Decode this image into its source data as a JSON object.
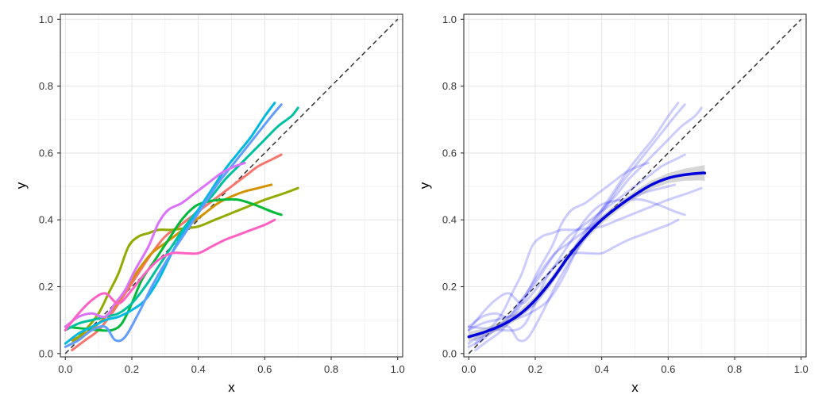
{
  "chart_data": [
    {
      "type": "line",
      "title": "",
      "xlabel": "x",
      "ylabel": "y",
      "xlim": [
        -0.015,
        1.015
      ],
      "ylim": [
        -0.01,
        1.015
      ],
      "xticks": [
        "0.0",
        "0.2",
        "0.4",
        "0.6",
        "0.8",
        "1.0"
      ],
      "yticks": [
        "0.0",
        "0.2",
        "0.4",
        "0.6",
        "0.8",
        "1.0"
      ],
      "grid": true,
      "legend": "none",
      "reference_line": {
        "x": [
          0,
          1
        ],
        "y": [
          0,
          1
        ],
        "style": "dashed",
        "color": "#333333"
      },
      "series": [
        {
          "color": "#F8766D",
          "x": [
            0.02,
            0.06,
            0.1,
            0.14,
            0.18,
            0.22,
            0.26,
            0.3,
            0.34,
            0.38,
            0.42,
            0.46,
            0.5,
            0.54,
            0.58,
            0.62,
            0.65
          ],
          "y": [
            0.01,
            0.04,
            0.07,
            0.12,
            0.18,
            0.24,
            0.3,
            0.35,
            0.38,
            0.41,
            0.44,
            0.47,
            0.5,
            0.53,
            0.56,
            0.58,
            0.595
          ]
        },
        {
          "color": "#D39200",
          "x": [
            0.02,
            0.06,
            0.1,
            0.14,
            0.18,
            0.22,
            0.26,
            0.3,
            0.34,
            0.38,
            0.42,
            0.46,
            0.5,
            0.54,
            0.58,
            0.62
          ],
          "y": [
            0.04,
            0.06,
            0.09,
            0.13,
            0.19,
            0.25,
            0.3,
            0.33,
            0.36,
            0.39,
            0.42,
            0.45,
            0.47,
            0.485,
            0.495,
            0.505
          ]
        },
        {
          "color": "#93AA00",
          "x": [
            0.02,
            0.06,
            0.1,
            0.13,
            0.16,
            0.19,
            0.22,
            0.25,
            0.28,
            0.32,
            0.36,
            0.4,
            0.45,
            0.5,
            0.55,
            0.6,
            0.66,
            0.7
          ],
          "y": [
            0.03,
            0.07,
            0.12,
            0.18,
            0.24,
            0.32,
            0.35,
            0.36,
            0.37,
            0.37,
            0.375,
            0.38,
            0.4,
            0.42,
            0.44,
            0.46,
            0.48,
            0.495
          ]
        },
        {
          "color": "#00BA38",
          "x": [
            0.0,
            0.05,
            0.1,
            0.14,
            0.17,
            0.2,
            0.23,
            0.27,
            0.31,
            0.35,
            0.39,
            0.43,
            0.47,
            0.52,
            0.57,
            0.62,
            0.65
          ],
          "y": [
            0.08,
            0.075,
            0.07,
            0.07,
            0.09,
            0.15,
            0.22,
            0.28,
            0.34,
            0.4,
            0.44,
            0.455,
            0.46,
            0.46,
            0.445,
            0.425,
            0.415
          ]
        },
        {
          "color": "#00C19F",
          "x": [
            0.0,
            0.04,
            0.08,
            0.12,
            0.16,
            0.2,
            0.24,
            0.28,
            0.32,
            0.36,
            0.4,
            0.44,
            0.48,
            0.52,
            0.56,
            0.6,
            0.64,
            0.68,
            0.7
          ],
          "y": [
            0.07,
            0.09,
            0.1,
            0.11,
            0.12,
            0.15,
            0.2,
            0.26,
            0.32,
            0.38,
            0.43,
            0.47,
            0.52,
            0.56,
            0.6,
            0.64,
            0.68,
            0.71,
            0.735
          ]
        },
        {
          "color": "#00B9E3",
          "x": [
            0.0,
            0.04,
            0.08,
            0.12,
            0.16,
            0.2,
            0.24,
            0.28,
            0.32,
            0.36,
            0.4,
            0.44,
            0.48,
            0.52,
            0.56,
            0.6,
            0.63
          ],
          "y": [
            0.03,
            0.06,
            0.08,
            0.1,
            0.11,
            0.13,
            0.16,
            0.22,
            0.3,
            0.37,
            0.43,
            0.49,
            0.55,
            0.6,
            0.65,
            0.71,
            0.75
          ]
        },
        {
          "color": "#619CFF",
          "x": [
            0.0,
            0.04,
            0.08,
            0.12,
            0.15,
            0.18,
            0.22,
            0.26,
            0.3,
            0.34,
            0.38,
            0.42,
            0.46,
            0.5,
            0.54,
            0.58,
            0.62,
            0.65
          ],
          "y": [
            0.02,
            0.04,
            0.07,
            0.08,
            0.04,
            0.05,
            0.12,
            0.2,
            0.27,
            0.33,
            0.39,
            0.45,
            0.51,
            0.56,
            0.61,
            0.66,
            0.71,
            0.745
          ]
        },
        {
          "color": "#DB72FB",
          "x": [
            0.0,
            0.04,
            0.08,
            0.12,
            0.15,
            0.18,
            0.21,
            0.25,
            0.28,
            0.31,
            0.35,
            0.39,
            0.43,
            0.47,
            0.51,
            0.54
          ],
          "y": [
            0.08,
            0.11,
            0.12,
            0.11,
            0.15,
            0.19,
            0.25,
            0.32,
            0.39,
            0.43,
            0.45,
            0.48,
            0.51,
            0.54,
            0.56,
            0.57
          ]
        },
        {
          "color": "#FF61C3",
          "x": [
            0.0,
            0.04,
            0.08,
            0.12,
            0.16,
            0.2,
            0.24,
            0.28,
            0.32,
            0.36,
            0.4,
            0.44,
            0.48,
            0.52,
            0.56,
            0.6,
            0.63
          ],
          "y": [
            0.07,
            0.12,
            0.16,
            0.18,
            0.15,
            0.19,
            0.24,
            0.28,
            0.3,
            0.3,
            0.3,
            0.32,
            0.34,
            0.355,
            0.37,
            0.385,
            0.4
          ]
        }
      ]
    },
    {
      "type": "line",
      "title": "",
      "xlabel": "x",
      "ylabel": "y",
      "xlim": [
        -0.015,
        1.015
      ],
      "ylim": [
        -0.01,
        1.015
      ],
      "xticks": [
        "0.0",
        "0.2",
        "0.4",
        "0.6",
        "0.8",
        "1.0"
      ],
      "yticks": [
        "0.0",
        "0.2",
        "0.4",
        "0.6",
        "0.8",
        "1.0"
      ],
      "grid": true,
      "legend": "none",
      "reference_line": {
        "x": [
          0,
          1
        ],
        "y": [
          0,
          1
        ],
        "style": "dashed",
        "color": "#333333"
      },
      "faded_series_color": "#0000FF",
      "faded_series_opacity": 0.2,
      "smooth": {
        "color": "#0000DD",
        "band_color": "#999999",
        "x": [
          0.0,
          0.05,
          0.1,
          0.15,
          0.2,
          0.25,
          0.3,
          0.35,
          0.4,
          0.45,
          0.5,
          0.55,
          0.6,
          0.65,
          0.7,
          0.71
        ],
        "y": [
          0.05,
          0.065,
          0.085,
          0.115,
          0.16,
          0.22,
          0.29,
          0.35,
          0.4,
          0.44,
          0.475,
          0.505,
          0.525,
          0.535,
          0.54,
          0.54
        ],
        "band": [
          0.015,
          0.012,
          0.012,
          0.012,
          0.012,
          0.012,
          0.012,
          0.012,
          0.012,
          0.012,
          0.012,
          0.013,
          0.015,
          0.018,
          0.022,
          0.024
        ]
      }
    }
  ]
}
